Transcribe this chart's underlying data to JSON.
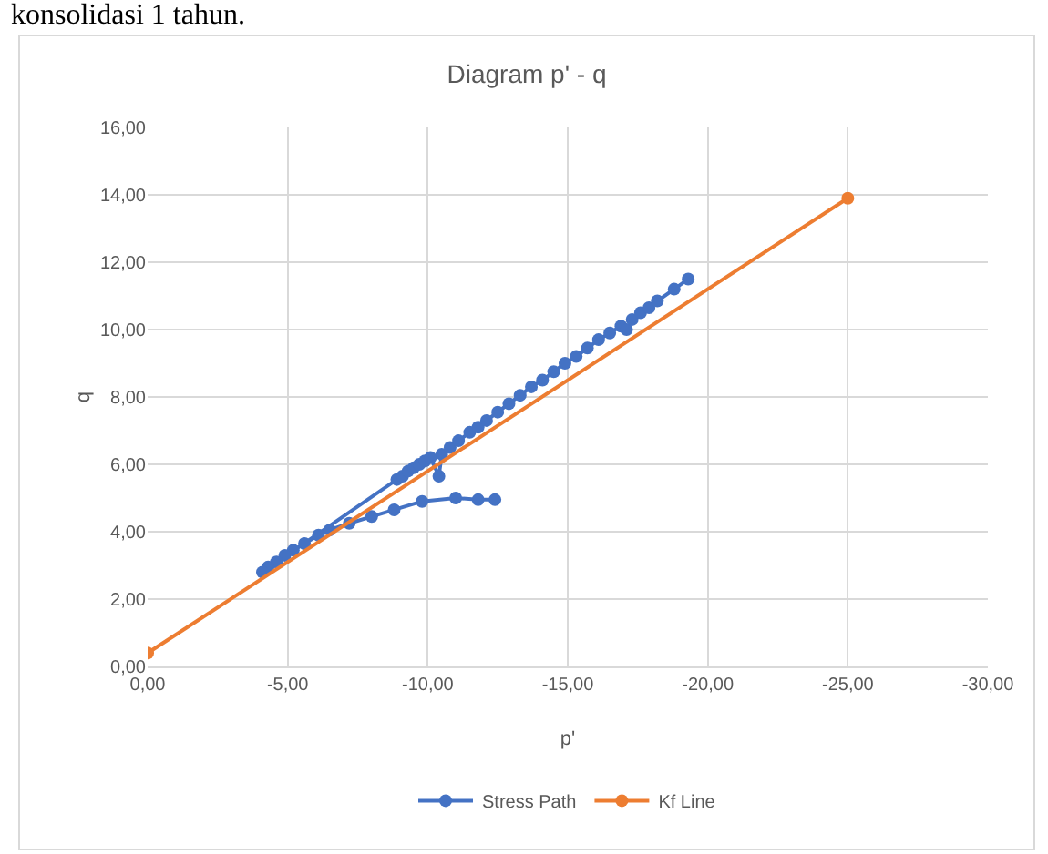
{
  "chart_data": {
    "type": "line",
    "title": "Diagram p' - q",
    "xlabel": "p'",
    "ylabel": "q",
    "annotations": [
      "konsolidasi 1 tahun."
    ],
    "xlim": [
      0,
      -30
    ],
    "xticks": [
      {
        "value": 0,
        "label": "0,00"
      },
      {
        "value": -5,
        "label": "-5,00"
      },
      {
        "value": -10,
        "label": "-10,00"
      },
      {
        "value": -15,
        "label": "-15,00"
      },
      {
        "value": -20,
        "label": "-20,00"
      },
      {
        "value": -25,
        "label": "-25,00"
      },
      {
        "value": -30,
        "label": "-30,00"
      }
    ],
    "ylim": [
      0,
      16
    ],
    "yticks": [
      {
        "value": 0,
        "label": "0,00"
      },
      {
        "value": 2,
        "label": "2,00"
      },
      {
        "value": 4,
        "label": "4,00"
      },
      {
        "value": 6,
        "label": "6,00"
      },
      {
        "value": 8,
        "label": "8,00"
      },
      {
        "value": 10,
        "label": "10,00"
      },
      {
        "value": 12,
        "label": "12,00"
      },
      {
        "value": 14,
        "label": "14,00"
      },
      {
        "value": 16,
        "label": "16,00"
      }
    ],
    "grid": true,
    "legend": "bottom",
    "marker": "circle",
    "line_style": "solid",
    "series": [
      {
        "name": "Stress Path",
        "color": "#4472c4",
        "x": [
          -12.4,
          -11.8,
          -11.0,
          -9.8,
          -8.8,
          -8.0,
          -7.2,
          -6.5,
          -6.1,
          -5.6,
          -5.2,
          -4.9,
          -4.6,
          -4.3,
          -4.1,
          -8.9,
          -9.1,
          -9.3,
          -9.5,
          -9.7,
          -9.9,
          -10.1,
          -10.4,
          -10.5,
          -10.8,
          -11.1,
          -11.5,
          -11.8,
          -12.1,
          -12.5,
          -12.9,
          -13.3,
          -13.7,
          -14.1,
          -14.5,
          -14.9,
          -15.3,
          -15.7,
          -16.1,
          -16.5,
          -16.9,
          -17.1,
          -17.3,
          -17.6,
          -17.9,
          -18.2,
          -18.8,
          -19.3
        ],
        "values": [
          4.95,
          4.95,
          5.0,
          4.9,
          4.65,
          4.45,
          4.25,
          4.05,
          3.9,
          3.65,
          3.45,
          3.3,
          3.1,
          2.95,
          2.8,
          5.55,
          5.65,
          5.8,
          5.9,
          6.0,
          6.1,
          6.2,
          5.65,
          6.3,
          6.5,
          6.7,
          6.95,
          7.1,
          7.3,
          7.55,
          7.8,
          8.05,
          8.3,
          8.5,
          8.75,
          9.0,
          9.2,
          9.45,
          9.7,
          9.9,
          10.1,
          10.0,
          10.3,
          10.5,
          10.65,
          10.85,
          11.2,
          11.5
        ]
      },
      {
        "name": "Kf Line",
        "color": "#ed7d31",
        "x": [
          0,
          -25
        ],
        "values": [
          0.4,
          13.9
        ]
      }
    ]
  }
}
